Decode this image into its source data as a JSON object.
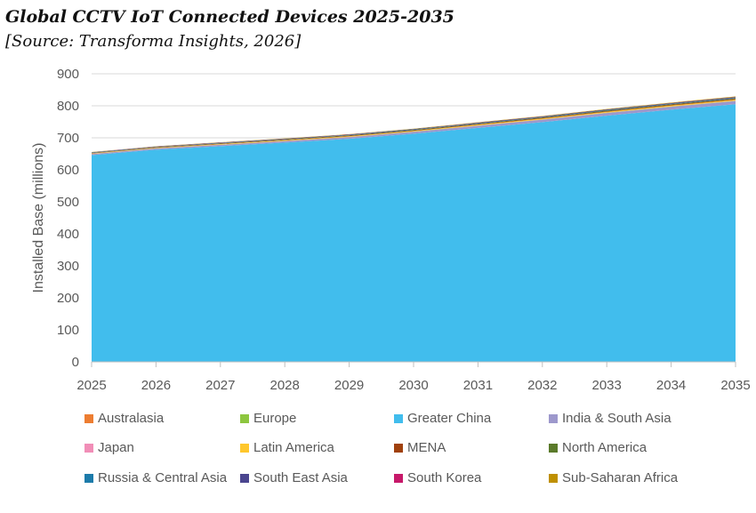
{
  "chart_data": {
    "type": "area",
    "stacked": true,
    "title": "Global CCTV IoT Connected Devices 2025-2035",
    "subtitle": "[Source: Transforma Insights, 2026]",
    "xlabel": "",
    "ylabel": "Installed Base (millions)",
    "x": [
      2025,
      2026,
      2027,
      2028,
      2029,
      2030,
      2031,
      2032,
      2033,
      2034,
      2035
    ],
    "ylim": [
      0,
      900
    ],
    "yticks": [
      0,
      100,
      200,
      300,
      400,
      500,
      600,
      700,
      800,
      900
    ],
    "grid": true,
    "legend_position": "bottom",
    "series": [
      {
        "name": "Greater China",
        "color": "#41BDED",
        "values": [
          646,
          663,
          674,
          685,
          697,
          713,
          731,
          749,
          769,
          788,
          805
        ]
      },
      {
        "name": "India & South Asia",
        "color": "#9D98CC",
        "values": [
          3,
          3.5,
          4,
          4.5,
          5,
          5.5,
          6.5,
          7.5,
          8.5,
          9,
          10
        ]
      },
      {
        "name": "Australasia",
        "color": "#ED7D31",
        "values": [
          0.3,
          0.3,
          0.3,
          0.3,
          0.3,
          0.3,
          0.3,
          0.3,
          0.3,
          0.3,
          0.3
        ]
      },
      {
        "name": "Europe",
        "color": "#8DC63F",
        "values": [
          0.5,
          0.5,
          0.5,
          0.5,
          0.5,
          0.5,
          0.5,
          0.5,
          0.5,
          0.5,
          0.5
        ]
      },
      {
        "name": "Japan",
        "color": "#F18EB7",
        "values": [
          0.4,
          0.4,
          0.4,
          0.4,
          0.4,
          0.4,
          0.4,
          0.4,
          0.4,
          0.4,
          0.4
        ]
      },
      {
        "name": "Latin America",
        "color": "#FFC72C",
        "values": [
          1,
          1.2,
          1.4,
          1.6,
          1.8,
          2,
          2.2,
          2.4,
          2.6,
          2.8,
          3
        ]
      },
      {
        "name": "MENA",
        "color": "#A0410D",
        "values": [
          1,
          1.1,
          1.3,
          1.4,
          1.6,
          1.7,
          1.9,
          2,
          2.2,
          2.3,
          2.5
        ]
      },
      {
        "name": "North America",
        "color": "#5A7A2A",
        "values": [
          1,
          1.1,
          1.2,
          1.3,
          1.4,
          1.5,
          1.6,
          1.7,
          1.8,
          1.9,
          2
        ]
      },
      {
        "name": "Russia & Central Asia",
        "color": "#1C7BAA",
        "values": [
          0.5,
          0.5,
          0.6,
          0.6,
          0.7,
          0.7,
          0.8,
          0.8,
          0.9,
          0.9,
          1
        ]
      },
      {
        "name": "South East Asia",
        "color": "#4A458F",
        "values": [
          1,
          1.1,
          1.3,
          1.4,
          1.6,
          1.7,
          1.9,
          2,
          2.2,
          2.3,
          2.5
        ]
      },
      {
        "name": "South Korea",
        "color": "#C7196A",
        "values": [
          0.3,
          0.3,
          0.3,
          0.3,
          0.3,
          0.3,
          0.3,
          0.3,
          0.3,
          0.3,
          0.3
        ]
      },
      {
        "name": "Sub-Saharan Africa",
        "color": "#BF9000",
        "values": [
          0.5,
          0.6,
          0.7,
          0.8,
          0.9,
          1,
          1.1,
          1.2,
          1.3,
          1.4,
          1.5
        ]
      }
    ],
    "legend_order": [
      "Australasia",
      "Europe",
      "Greater China",
      "India & South Asia",
      "Japan",
      "Latin America",
      "MENA",
      "North America",
      "Russia & Central Asia",
      "South East Asia",
      "South Korea",
      "Sub-Saharan Africa"
    ]
  }
}
